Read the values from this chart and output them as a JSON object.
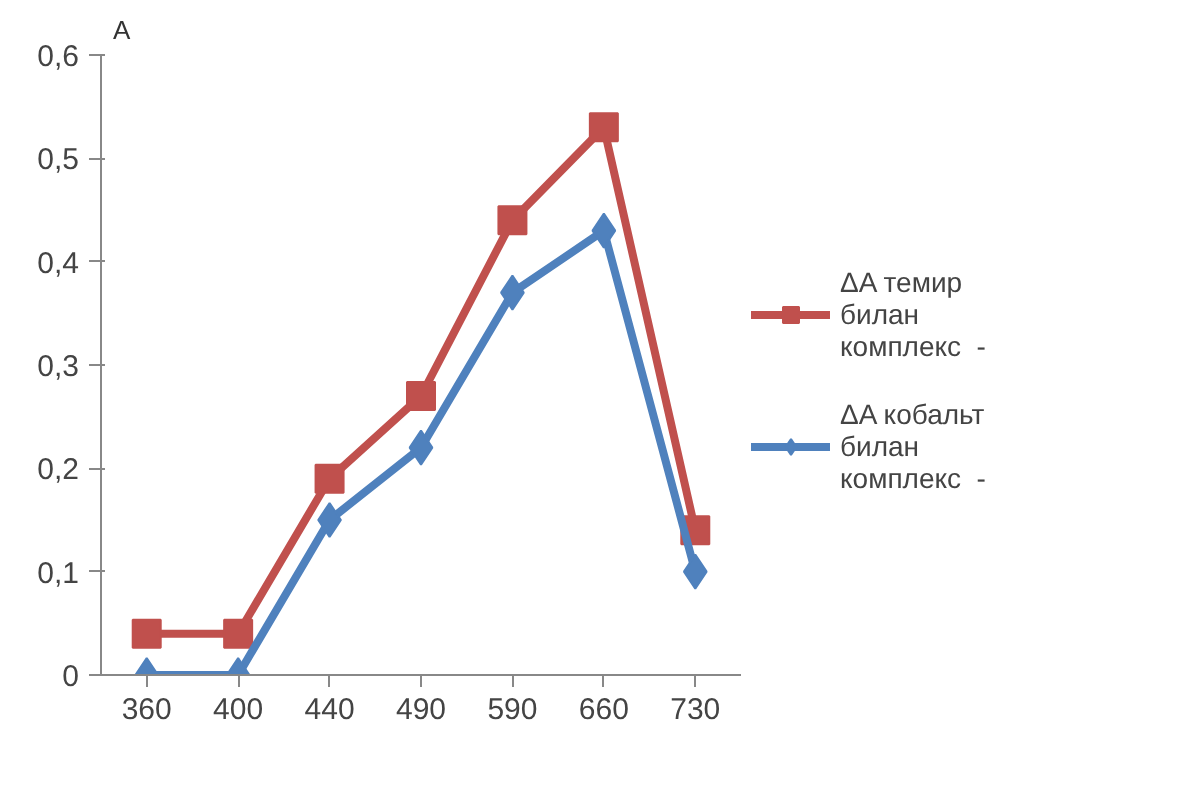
{
  "chart_data": {
    "type": "line",
    "ylabel": "A",
    "categories": [
      "360",
      "400",
      "440",
      "490",
      "590",
      "660",
      "730"
    ],
    "series": [
      {
        "name": "ΔA темир билан комплекс  -",
        "color": "#c0504d",
        "marker": "square",
        "values": [
          0.04,
          0.04,
          0.19,
          0.27,
          0.44,
          0.53,
          0.14
        ]
      },
      {
        "name": "ΔA кобальт билан комплекс  -",
        "color": "#4f81bd",
        "marker": "diamond",
        "values": [
          0,
          0,
          0.15,
          0.22,
          0.37,
          0.43,
          0.1
        ]
      }
    ],
    "ylim": [
      0,
      0.6
    ],
    "yticks": [
      {
        "value": 0,
        "label": "0"
      },
      {
        "value": 0.1,
        "label": "0,1"
      },
      {
        "value": 0.2,
        "label": "0,2"
      },
      {
        "value": 0.3,
        "label": "0,3"
      },
      {
        "value": 0.4,
        "label": "0,4"
      },
      {
        "value": 0.5,
        "label": "0,5"
      },
      {
        "value": 0.6,
        "label": "0,6"
      }
    ],
    "grid": false,
    "legend": "right",
    "line_style": "solid"
  }
}
